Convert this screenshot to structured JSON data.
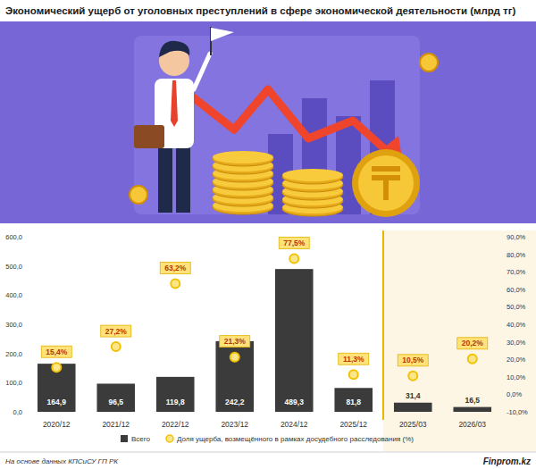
{
  "chart_data": {
    "type": "bar",
    "title": "Экономический ущерб от уголовных преступлений в сфере экономической деятельности (млрд тг)",
    "categories": [
      "2020/12",
      "2021/12",
      "2022/12",
      "2023/12",
      "2024/12",
      "2025/12",
      "2025/03",
      "2026/03"
    ],
    "series": [
      {
        "name": "Всего",
        "type": "bar",
        "color": "#3b3b3b",
        "values": [
          164.9,
          96.5,
          119.8,
          242.2,
          489.3,
          81.8,
          31.4,
          16.5
        ],
        "value_labels": [
          "164,9",
          "96,5",
          "119,8",
          "242,2",
          "489,3",
          "81,8",
          "31,4",
          "16,5"
        ]
      },
      {
        "name": "Доля ущерба, возмещённого в рамках досудебного расследования (%)",
        "type": "scatter",
        "axis": "y2",
        "color": "#f2c200",
        "marker": "circle",
        "values": [
          15.4,
          27.2,
          63.2,
          21.3,
          77.5,
          11.3,
          10.5,
          20.2
        ],
        "value_labels": [
          "15,4%",
          "27,2%",
          "63,2%",
          "21,3%",
          "77,5%",
          "11,3%",
          "10,5%",
          "20,2%"
        ]
      }
    ],
    "ylim": [
      0,
      600
    ],
    "yticks": [
      {
        "value": 0,
        "label": "0,0"
      },
      {
        "value": 100,
        "label": "100,0"
      },
      {
        "value": 200,
        "label": "200,0"
      },
      {
        "value": 300,
        "label": "300,0"
      },
      {
        "value": 400,
        "label": "400,0"
      },
      {
        "value": 500,
        "label": "500,0"
      },
      {
        "value": 600,
        "label": "600,0"
      }
    ],
    "y2lim": [
      -10,
      90
    ],
    "y2ticks": [
      {
        "value": -10,
        "label": "-10,0%"
      },
      {
        "value": 0,
        "label": "0,0%"
      },
      {
        "value": 10,
        "label": "10,0%"
      },
      {
        "value": 20,
        "label": "20,0%"
      },
      {
        "value": 30,
        "label": "30,0%"
      },
      {
        "value": 40,
        "label": "40,0%"
      },
      {
        "value": 50,
        "label": "50,0%"
      },
      {
        "value": 60,
        "label": "60,0%"
      },
      {
        "value": 70,
        "label": "70,0%"
      },
      {
        "value": 80,
        "label": "80,0%"
      },
      {
        "value": 90,
        "label": "90,0%"
      }
    ],
    "grid": false,
    "legend": "bottom",
    "data_labels": true
  },
  "footer": {
    "source": "На основе данных КПСиСУ ГП РК",
    "brand": "Finprom.kz"
  }
}
